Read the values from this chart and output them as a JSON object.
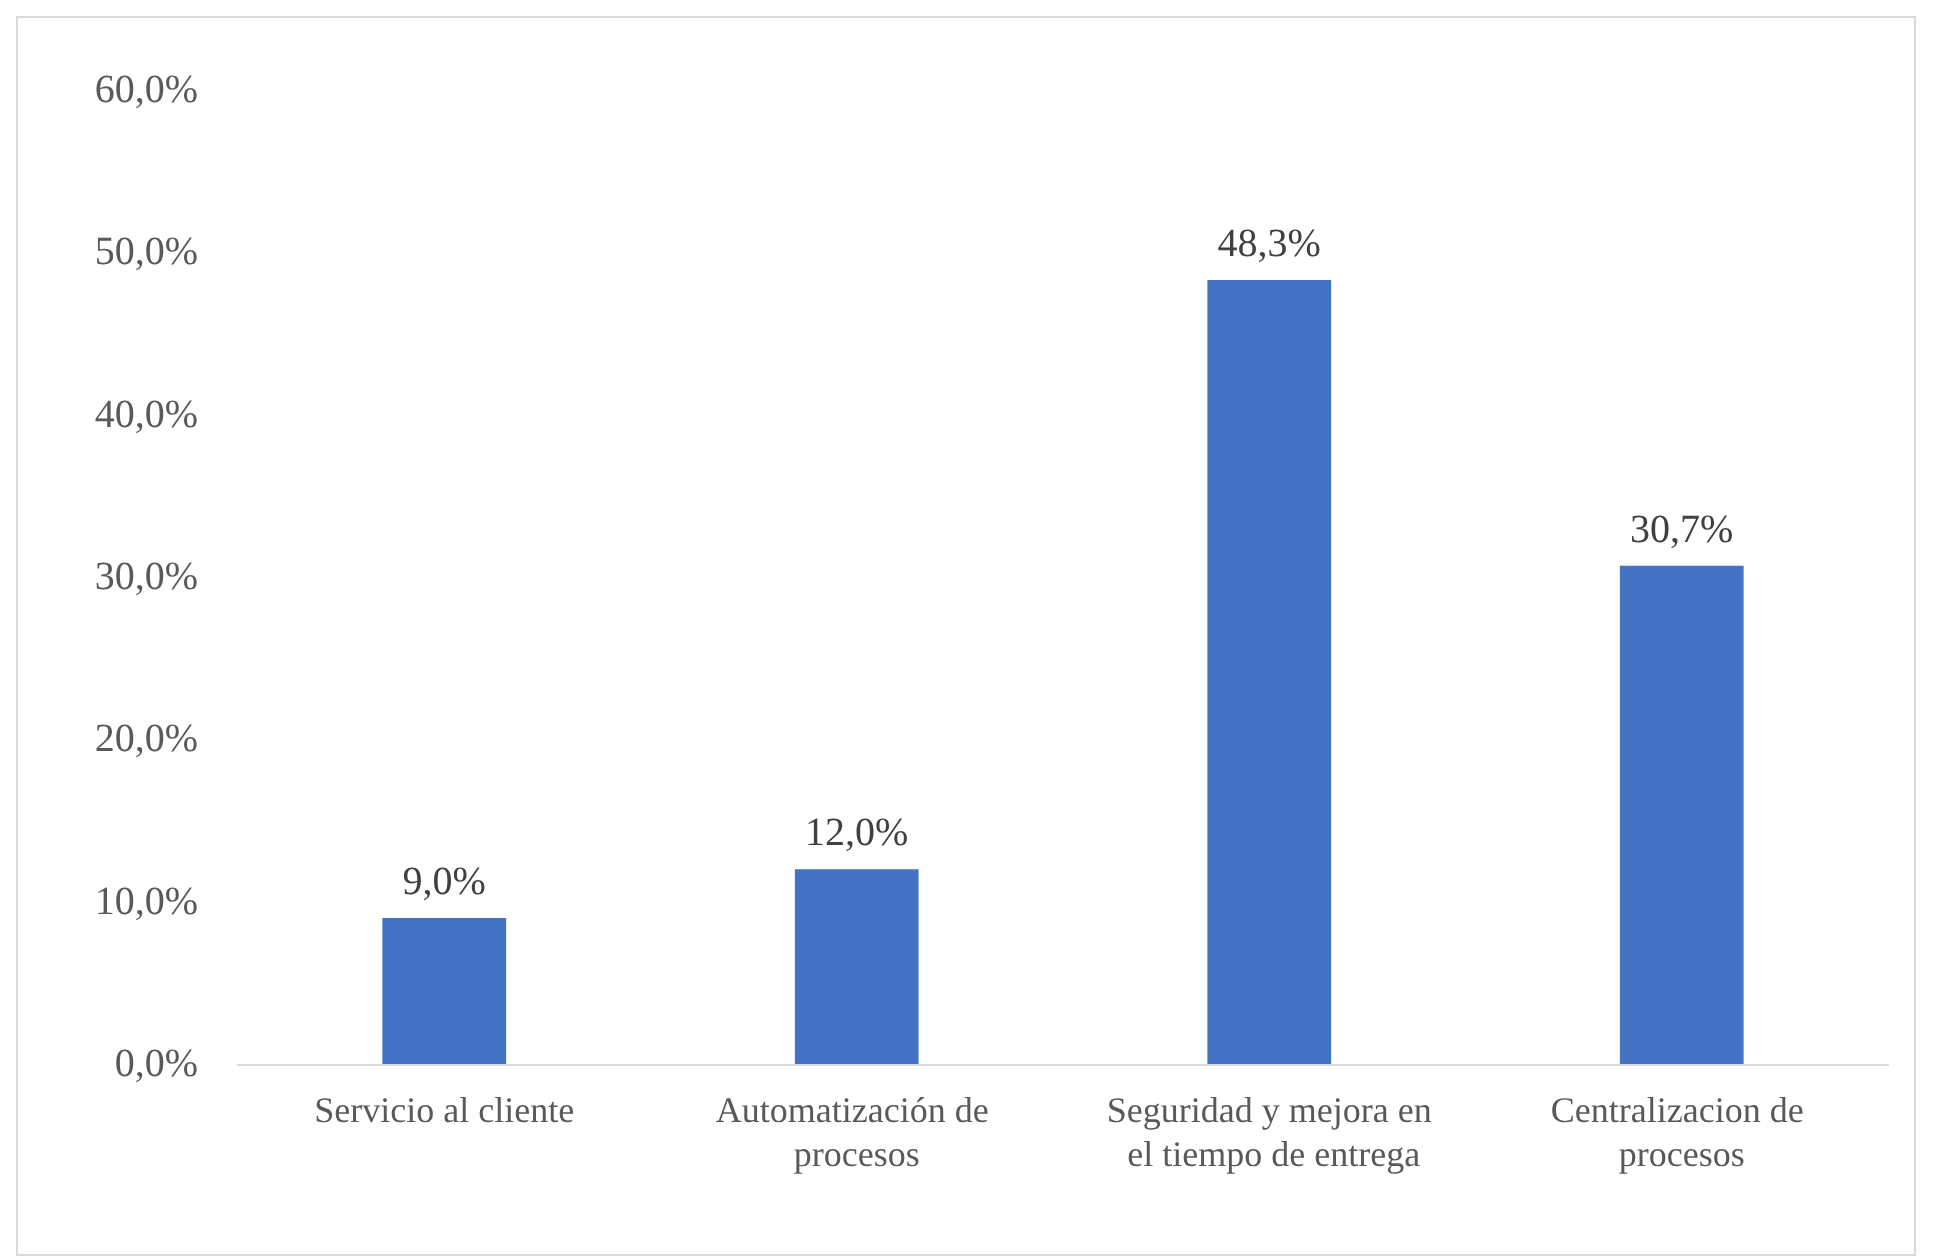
{
  "chart_data": {
    "type": "bar",
    "categories": [
      "Servicio al cliente",
      "Automatización de procesos",
      "Seguridad y mejora en el tiempo de entrega",
      "Centralizacion de procesos"
    ],
    "values": [
      9.0,
      12.0,
      48.3,
      30.7
    ],
    "value_labels": [
      "9,0%",
      "12,0%",
      "48,3%",
      "30,7%"
    ],
    "color": "#4472c4",
    "ylim": [
      0,
      60
    ],
    "yticks": [
      {
        "value": 0,
        "label": "0,0%"
      },
      {
        "value": 10,
        "label": "10,0%"
      },
      {
        "value": 20,
        "label": "20,0%"
      },
      {
        "value": 30,
        "label": "30,0%"
      },
      {
        "value": 40,
        "label": "40,0%"
      },
      {
        "value": 50,
        "label": "50,0%"
      },
      {
        "value": 60,
        "label": "60,0%"
      }
    ]
  }
}
